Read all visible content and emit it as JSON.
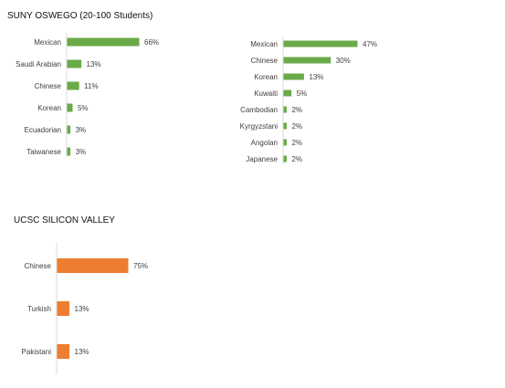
{
  "sections": {
    "oswego_title": "SUNY OSWEGO (20-100 Students)",
    "ucsc_title": "UCSC SILICON VALLEY"
  },
  "colors": {
    "green": "#6aaa48",
    "orange": "#ed7d31",
    "axis": "#d9d9d9"
  },
  "chart_data": [
    {
      "type": "bar",
      "orientation": "horizontal",
      "categories": [
        "Mexican",
        "Saudi Arabian",
        "Chinese",
        "Korean",
        "Ecuadorian",
        "Taiwanese"
      ],
      "values": [
        66,
        13,
        11,
        5,
        3,
        3
      ],
      "labels": [
        "66%",
        "13%",
        "11%",
        "5%",
        "3%",
        "3%"
      ],
      "color": "#6aaa48"
    },
    {
      "type": "bar",
      "orientation": "horizontal",
      "categories": [
        "Mexican",
        "Chinese",
        "Korean",
        "Kuwaiti",
        "Cambodian",
        "Kyrgyzstani",
        "Angolan",
        "Japanese"
      ],
      "values": [
        47,
        30,
        13,
        5,
        2,
        2,
        2,
        2
      ],
      "labels": [
        "47%",
        "30%",
        "13%",
        "5%",
        "2%",
        "2%",
        "2%",
        "2%"
      ],
      "color": "#6aaa48"
    },
    {
      "type": "bar",
      "orientation": "horizontal",
      "categories": [
        "Chinese",
        "Turkish",
        "Pakistani"
      ],
      "values": [
        75,
        13,
        13
      ],
      "labels": [
        "75%",
        "13%",
        "13%"
      ],
      "color": "#ed7d31"
    }
  ]
}
